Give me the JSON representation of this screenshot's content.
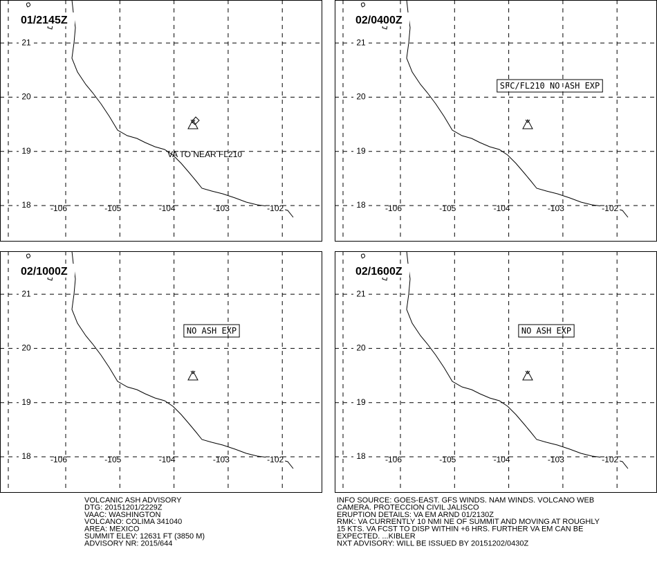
{
  "panels": [
    {
      "time": "01/2145Z",
      "annotation": "VA TO NEAR FL210"
    },
    {
      "time": "02/0400Z",
      "box_annotation": "SFC/FL210 NO ASH EXP"
    },
    {
      "time": "02/1000Z",
      "box_annotation": "NO ASH EXP"
    },
    {
      "time": "02/1600Z",
      "box_annotation": "NO ASH EXP"
    }
  ],
  "lat_labels": [
    21,
    20,
    19,
    18
  ],
  "lon_labels": [
    -106,
    -105,
    -104,
    -103,
    -102
  ],
  "advisory_left": [
    "VOLCANIC ASH ADVISORY",
    "DTG: 20151201/2229Z",
    "VAAC: WASHINGTON",
    "VOLCANO: COLIMA 341040",
    "AREA: MEXICO",
    "SUMMIT ELEV: 12631 FT (3850 M)",
    "ADVISORY NR: 2015/644"
  ],
  "advisory_right": [
    "INFO SOURCE: GOES-EAST. GFS WINDS. NAM WINDS. VOLCANO WEB",
    "CAMERA. PROTECCION CIVIL JALISCO",
    "ERUPTION DETAILS: VA EM ARND 01/2130Z",
    "RMK: VA CURRENTLY 10 NMI NE OF SUMMIT AND MOVING AT ROUGHLY",
    "15 KTS. VA FCST TO DISP WITHIN +6 HRS. FURTHER VA EM CAN BE",
    "EXPECTED. ...KIBLER",
    "NXT ADVISORY: WILL BE ISSUED BY 20151202/0430Z"
  ]
}
